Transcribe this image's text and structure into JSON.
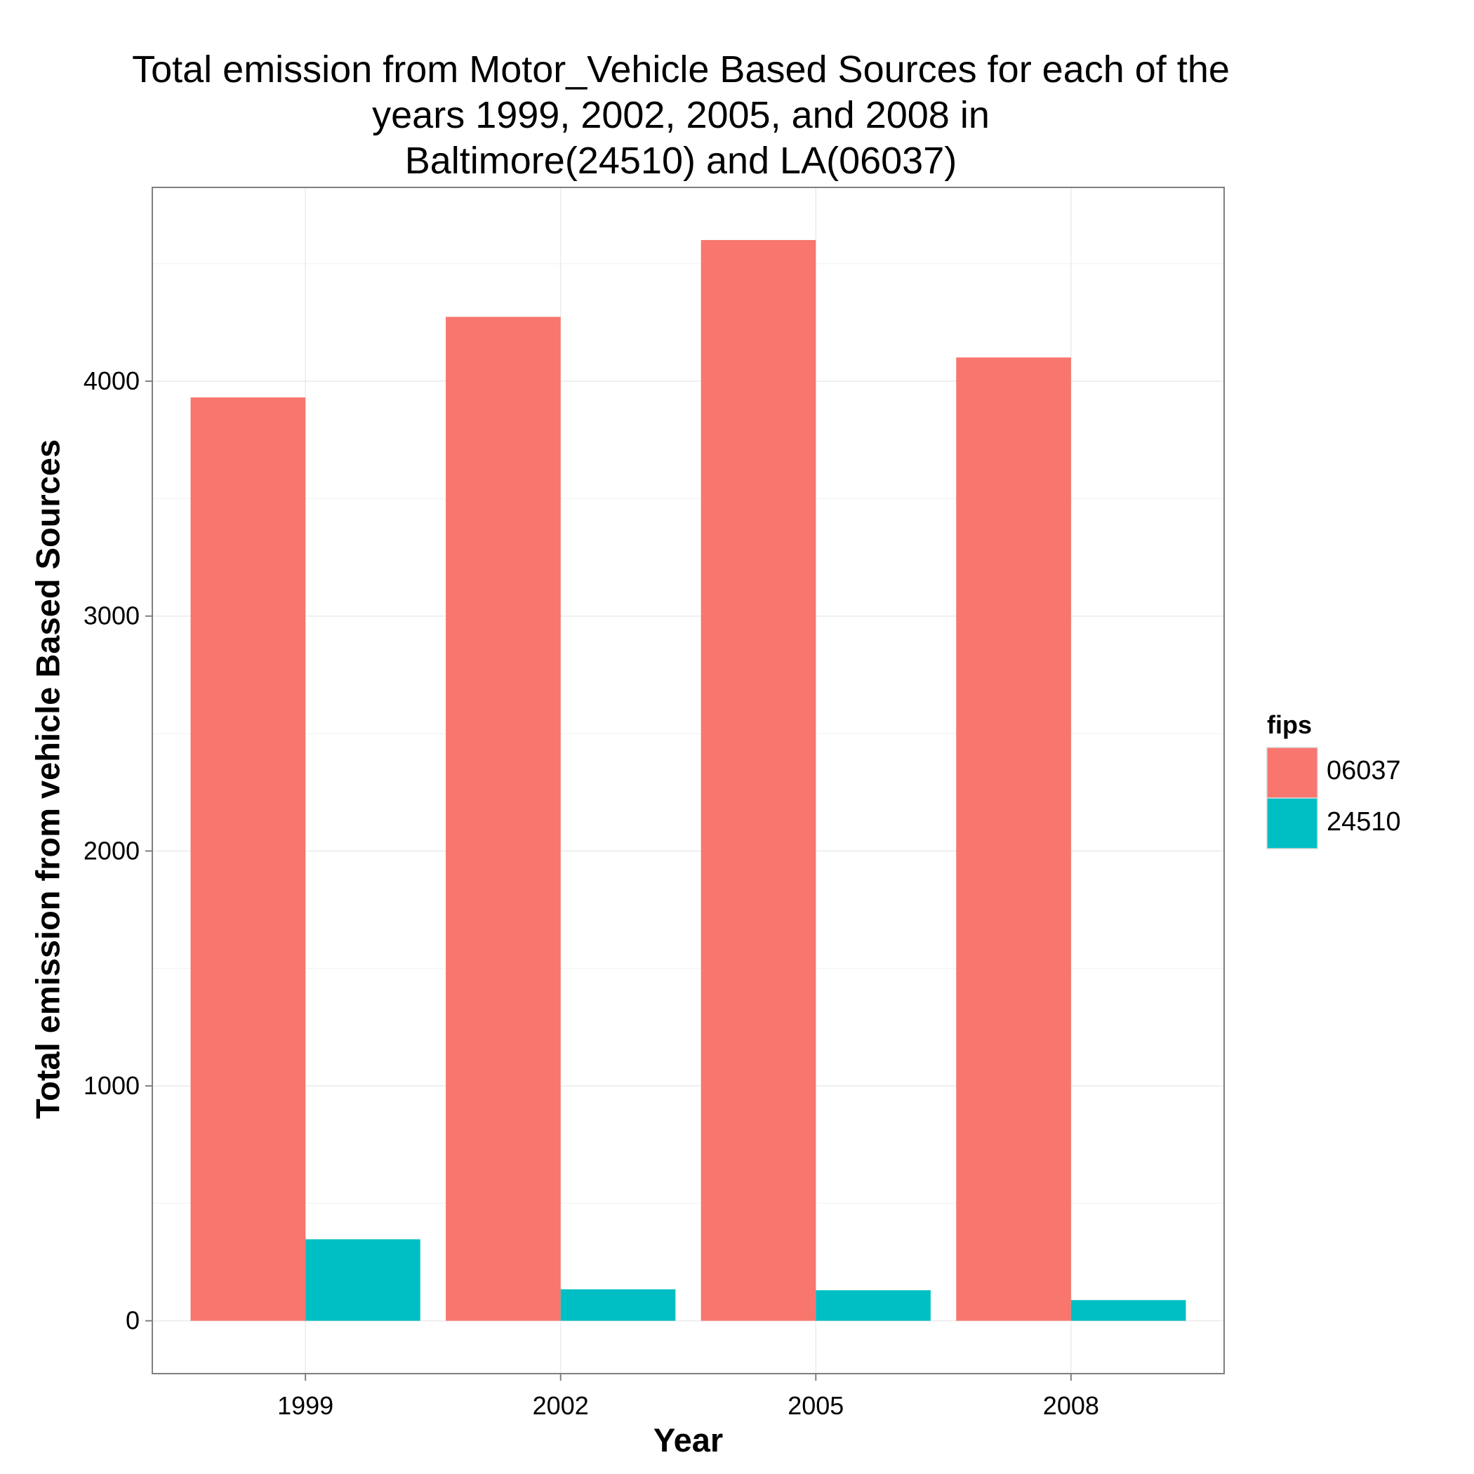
{
  "chart_data": {
    "type": "bar",
    "title": [
      "Total emission from Motor_Vehicle Based Sources for each of the",
      "years 1999, 2002, 2005, and 2008 in",
      "Baltimore(24510) and LA(06037)"
    ],
    "xlabel": "Year",
    "ylabel": "Total emission from vehicle Based Sources",
    "categories": [
      "1999",
      "2002",
      "2005",
      "2008"
    ],
    "series": [
      {
        "name": "06037",
        "color": "#F8766D",
        "values": [
          3931,
          4274,
          4601,
          4101
        ]
      },
      {
        "name": "24510",
        "color": "#00BFC4",
        "values": [
          347,
          134,
          130,
          88
        ]
      }
    ],
    "ylim": [
      -225,
      4825
    ],
    "yticks": [
      0,
      1000,
      2000,
      3000,
      4000
    ],
    "legend": {
      "title": "fips",
      "position": "right"
    },
    "grid": true
  }
}
